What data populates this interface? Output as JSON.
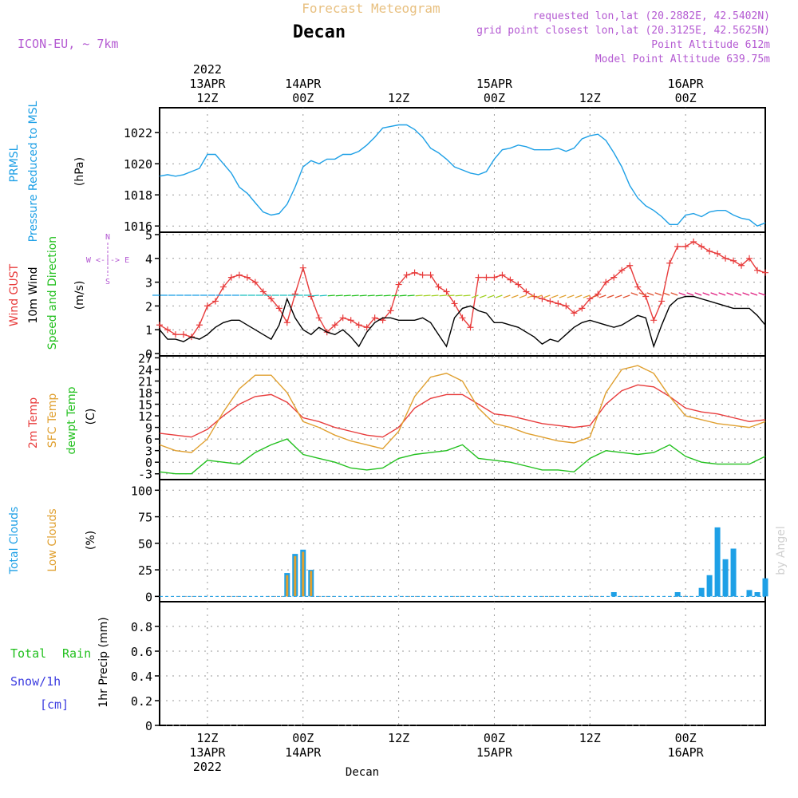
{
  "header": {
    "title": "Forecast Meteogram",
    "location": "Decan",
    "model": "ICON-EU, ~ 7km",
    "requested": "requested lon,lat (20.2882E, 42.5402N)",
    "gridpoint": "grid point closest lon,lat (20.3125E, 42.5625N)",
    "point_alt": "Point Altitude 612m",
    "model_alt": "Model Point Altitude 639.75m"
  },
  "footer": {
    "location": "Decan",
    "watermark": "by Angel"
  },
  "time_axis": {
    "top_year": "2022",
    "top": [
      {
        "day": "13APR",
        "hour": "12Z",
        "x": 6
      },
      {
        "day": "14APR",
        "hour": "00Z",
        "x": 18
      },
      {
        "day": "",
        "hour": "12Z",
        "x": 30
      },
      {
        "day": "15APR",
        "hour": "00Z",
        "x": 42
      },
      {
        "day": "",
        "hour": "12Z",
        "x": 54
      },
      {
        "day": "16APR",
        "hour": "00Z",
        "x": 66
      }
    ],
    "bottom_year": "2022",
    "bottom": [
      {
        "hour": "12Z",
        "day": "13APR",
        "x": 6
      },
      {
        "hour": "00Z",
        "day": "14APR",
        "x": 18
      },
      {
        "hour": "12Z",
        "day": "",
        "x": 30
      },
      {
        "hour": "00Z",
        "day": "15APR",
        "x": 42
      },
      {
        "hour": "12Z",
        "day": "",
        "x": 54
      },
      {
        "hour": "00Z",
        "day": "16APR",
        "x": 66
      }
    ]
  },
  "colors": {
    "prmsl": "#1ea0e6",
    "gust": "#e83c3c",
    "wind": "#000000",
    "dir": "#22c01e",
    "t2m": "#e83c3c",
    "sfc": "#e0a030",
    "dewpt": "#22c01e",
    "total_clouds": "#1ea0e6",
    "low_clouds": "#e0a030",
    "rain": "#22c01e",
    "snow": "#3c3ce0",
    "meta": "#b45ad2",
    "title": "#e8c080"
  },
  "panels": {
    "pressure": {
      "label1": "PRMSL",
      "label2": "Pressure Reduced to MSL",
      "unit": "(hPa)"
    },
    "wind": {
      "label1": "Wind GUST",
      "label2": "10m Wind",
      "label3": "Speed and Direction",
      "unit": "(m/s)",
      "compass_n": "N",
      "compass_s": "S",
      "compass_ew": "W <-|-> E"
    },
    "temp": {
      "label1": "2m Temp",
      "label2": "SFC Temp",
      "label3": "dewpt Temp",
      "unit": "(C)"
    },
    "clouds": {
      "label1": "Total Clouds",
      "label2": "Low Clouds",
      "unit": "(%)"
    },
    "precip": {
      "label1": "Total",
      "label2": "Rain",
      "label3": "Snow/1h",
      "label4": "[cm]",
      "unit": "1hr Precip (mm)"
    }
  },
  "chart_data": [
    {
      "type": "line",
      "name": "pressure",
      "xlim": [
        0,
        76
      ],
      "ylim": [
        1015.6,
        1023.6
      ],
      "yticks": [
        1016,
        1018,
        1020,
        1022
      ],
      "series": [
        {
          "name": "PRMSL",
          "x": [
            0,
            1,
            2,
            3,
            4,
            5,
            6,
            7,
            8,
            9,
            10,
            11,
            12,
            13,
            14,
            15,
            16,
            17,
            18,
            19,
            20,
            21,
            22,
            23,
            24,
            25,
            26,
            27,
            28,
            29,
            30,
            31,
            32,
            33,
            34,
            35,
            36,
            37,
            38,
            39,
            40,
            41,
            42,
            43,
            44,
            45,
            46,
            47,
            48,
            49,
            50,
            51,
            52,
            53,
            54,
            55,
            56,
            57,
            58,
            59,
            60,
            61,
            62,
            63,
            64,
            65,
            66,
            67,
            68,
            69,
            70,
            71,
            72,
            73,
            74,
            75,
            76
          ],
          "y": [
            1019.2,
            1019.3,
            1019.2,
            1019.3,
            1019.5,
            1019.7,
            1020.6,
            1020.6,
            1020.0,
            1019.4,
            1018.5,
            1018.1,
            1017.5,
            1016.9,
            1016.7,
            1016.8,
            1017.4,
            1018.5,
            1019.8,
            1020.2,
            1020.0,
            1020.3,
            1020.3,
            1020.6,
            1020.6,
            1020.8,
            1021.2,
            1021.7,
            1022.3,
            1022.4,
            1022.5,
            1022.5,
            1022.2,
            1021.7,
            1021.0,
            1020.7,
            1020.3,
            1019.8,
            1019.6,
            1019.4,
            1019.3,
            1019.5,
            1020.3,
            1020.9,
            1021.0,
            1021.2,
            1021.1,
            1020.9,
            1020.9,
            1020.9,
            1021.0,
            1020.8,
            1021.0,
            1021.6,
            1021.8,
            1021.9,
            1021.5,
            1020.7,
            1019.8,
            1018.6,
            1017.8,
            1017.3,
            1017.0,
            1016.6,
            1016.1,
            1016.1,
            1016.7,
            1016.8,
            1016.6,
            1016.9,
            1017.0,
            1017.0,
            1016.7,
            1016.5,
            1016.4,
            1016.0,
            1016.2
          ]
        }
      ]
    },
    {
      "type": "line",
      "name": "wind",
      "xlim": [
        0,
        76
      ],
      "ylim": [
        -0.1,
        5.1
      ],
      "yticks": [
        0,
        1,
        2,
        3,
        4,
        5
      ],
      "series": [
        {
          "name": "Wind GUST",
          "x": [
            0,
            1,
            2,
            3,
            4,
            5,
            6,
            7,
            8,
            9,
            10,
            11,
            12,
            13,
            14,
            15,
            16,
            17,
            18,
            19,
            20,
            21,
            22,
            23,
            24,
            25,
            26,
            27,
            28,
            29,
            30,
            31,
            32,
            33,
            34,
            35,
            36,
            37,
            38,
            39,
            40,
            41,
            42,
            43,
            44,
            45,
            46,
            47,
            48,
            49,
            50,
            51,
            52,
            53,
            54,
            55,
            56,
            57,
            58,
            59,
            60,
            61,
            62,
            63,
            64,
            65,
            66,
            67,
            68,
            69,
            70,
            71,
            72,
            73,
            74,
            75,
            76
          ],
          "y": [
            1.2,
            1.0,
            0.8,
            0.8,
            0.7,
            1.2,
            2.0,
            2.2,
            2.8,
            3.2,
            3.3,
            3.2,
            3.0,
            2.6,
            2.3,
            1.9,
            1.3,
            2.5,
            3.6,
            2.4,
            1.5,
            0.9,
            1.2,
            1.5,
            1.4,
            1.2,
            1.1,
            1.5,
            1.4,
            1.8,
            2.9,
            3.3,
            3.4,
            3.3,
            3.3,
            2.8,
            2.6,
            2.1,
            1.5,
            1.1,
            3.2,
            3.2,
            3.2,
            3.3,
            3.1,
            2.9,
            2.6,
            2.4,
            2.3,
            2.2,
            2.1,
            2.0,
            1.7,
            1.9,
            2.3,
            2.5,
            3.0,
            3.2,
            3.5,
            3.7,
            2.8,
            2.4,
            1.4,
            2.2,
            3.8,
            4.5,
            4.5,
            4.7,
            4.5,
            4.3,
            4.2,
            4.0,
            3.9,
            3.7,
            4.0,
            3.5,
            3.4
          ]
        },
        {
          "name": "10m Wind",
          "x": [
            0,
            1,
            2,
            3,
            4,
            5,
            6,
            7,
            8,
            9,
            10,
            11,
            12,
            13,
            14,
            15,
            16,
            17,
            18,
            19,
            20,
            21,
            22,
            23,
            24,
            25,
            26,
            27,
            28,
            29,
            30,
            31,
            32,
            33,
            34,
            35,
            36,
            37,
            38,
            39,
            40,
            41,
            42,
            43,
            44,
            45,
            46,
            47,
            48,
            49,
            50,
            51,
            52,
            53,
            54,
            55,
            56,
            57,
            58,
            59,
            60,
            61,
            62,
            63,
            64,
            65,
            66,
            67,
            68,
            69,
            70,
            71,
            72,
            73,
            74,
            75,
            76
          ],
          "y": [
            1.0,
            0.6,
            0.6,
            0.5,
            0.7,
            0.6,
            0.8,
            1.1,
            1.3,
            1.4,
            1.4,
            1.2,
            1.0,
            0.8,
            0.6,
            1.2,
            2.3,
            1.5,
            1.0,
            0.8,
            1.1,
            0.9,
            0.8,
            1.0,
            0.7,
            0.3,
            0.9,
            1.3,
            1.5,
            1.5,
            1.4,
            1.4,
            1.4,
            1.5,
            1.3,
            0.8,
            0.3,
            1.5,
            1.9,
            2.0,
            1.8,
            1.7,
            1.3,
            1.3,
            1.2,
            1.1,
            0.9,
            0.7,
            0.4,
            0.6,
            0.5,
            0.8,
            1.1,
            1.3,
            1.4,
            1.3,
            1.2,
            1.1,
            1.2,
            1.4,
            1.6,
            1.5,
            0.3,
            1.2,
            2.0,
            2.3,
            2.4,
            2.4,
            2.3,
            2.2,
            2.1,
            2.0,
            1.9,
            1.9,
            1.9,
            1.6,
            1.2
          ]
        }
      ]
    },
    {
      "type": "line",
      "name": "temperature",
      "xlim": [
        0,
        76
      ],
      "ylim": [
        -4.5,
        27.5
      ],
      "yticks": [
        -3,
        0,
        3,
        6,
        9,
        12,
        15,
        18,
        21,
        24,
        27
      ],
      "series": [
        {
          "name": "2m Temp",
          "x": [
            0,
            2,
            4,
            6,
            8,
            10,
            12,
            14,
            16,
            18,
            20,
            22,
            24,
            26,
            28,
            30,
            32,
            34,
            36,
            38,
            40,
            42,
            44,
            46,
            48,
            50,
            52,
            54,
            56,
            58,
            60,
            62,
            64,
            66,
            68,
            70,
            72,
            74,
            76
          ],
          "y": [
            7.5,
            7.0,
            6.5,
            8.5,
            12.0,
            15.0,
            17.0,
            17.5,
            15.5,
            11.5,
            10.5,
            9.0,
            8.0,
            7.0,
            6.5,
            9.0,
            14.0,
            16.5,
            17.5,
            17.5,
            15.0,
            12.5,
            12.0,
            11.0,
            10.0,
            9.5,
            9.0,
            9.5,
            15.0,
            18.5,
            20.0,
            19.5,
            17.0,
            14.0,
            13.0,
            12.5,
            11.5,
            10.5,
            11.0
          ]
        },
        {
          "name": "SFC Temp",
          "x": [
            0,
            2,
            4,
            6,
            8,
            10,
            12,
            14,
            16,
            18,
            20,
            22,
            24,
            26,
            28,
            30,
            32,
            34,
            36,
            38,
            40,
            42,
            44,
            46,
            48,
            50,
            52,
            54,
            56,
            58,
            60,
            62,
            64,
            66,
            68,
            70,
            72,
            74,
            76
          ],
          "y": [
            4.5,
            3.0,
            2.5,
            6.0,
            13.0,
            19.0,
            22.5,
            22.5,
            18.0,
            10.5,
            9.0,
            7.0,
            5.5,
            4.5,
            3.5,
            8.0,
            17.0,
            22.0,
            23.0,
            21.0,
            14.0,
            10.0,
            9.0,
            7.5,
            6.5,
            5.5,
            5.0,
            6.5,
            18.0,
            24.0,
            25.0,
            23.0,
            17.0,
            12.0,
            11.0,
            10.0,
            9.5,
            9.0,
            10.5
          ]
        },
        {
          "name": "dewpt Temp",
          "x": [
            0,
            2,
            4,
            6,
            8,
            10,
            12,
            14,
            16,
            18,
            20,
            22,
            24,
            26,
            28,
            30,
            32,
            34,
            36,
            38,
            40,
            42,
            44,
            46,
            48,
            50,
            52,
            54,
            56,
            58,
            60,
            62,
            64,
            66,
            68,
            70,
            72,
            74,
            76
          ],
          "y": [
            -2.5,
            -3.0,
            -3.0,
            0.5,
            0.0,
            -0.5,
            2.5,
            4.5,
            6.0,
            2.0,
            1.0,
            0.0,
            -1.5,
            -2.0,
            -1.5,
            1.0,
            2.0,
            2.5,
            3.0,
            4.5,
            1.0,
            0.5,
            0.0,
            -1.0,
            -2.0,
            -2.0,
            -2.5,
            1.0,
            3.0,
            2.5,
            2.0,
            2.5,
            4.5,
            1.5,
            0.0,
            -0.5,
            -0.5,
            -0.5,
            1.5
          ]
        }
      ]
    },
    {
      "type": "bar",
      "name": "clouds",
      "xlim": [
        0,
        76
      ],
      "ylim": [
        -5,
        110
      ],
      "yticks": [
        0,
        25,
        50,
        75,
        100
      ],
      "series": [
        {
          "name": "Total Clouds",
          "x": [
            16,
            17,
            18,
            19,
            57,
            65,
            68,
            69,
            70,
            71,
            72,
            74,
            75,
            76
          ],
          "y": [
            22,
            40,
            44,
            25,
            4,
            4,
            8,
            20,
            65,
            35,
            45,
            6,
            4,
            17
          ]
        },
        {
          "name": "Low Clouds",
          "x": [
            16,
            17,
            18,
            19
          ],
          "y": [
            20,
            38,
            42,
            24
          ]
        }
      ]
    },
    {
      "type": "line",
      "name": "precipitation",
      "xlim": [
        0,
        76
      ],
      "ylim": [
        0,
        1.0
      ],
      "yticks": [
        0,
        0.2,
        0.4,
        0.6,
        0.8
      ],
      "series": [
        {
          "name": "1hr Precip",
          "x": [
            0,
            76
          ],
          "y": [
            0,
            0
          ]
        }
      ]
    }
  ]
}
